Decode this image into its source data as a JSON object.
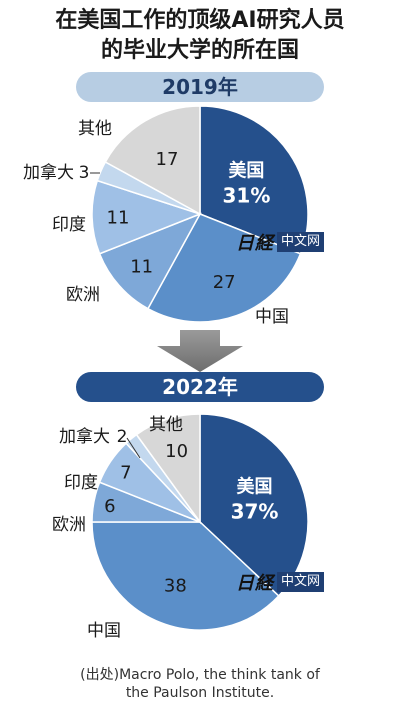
{
  "title_line1": "在美国工作的顶级AI研究人员",
  "title_line2": "的毕业大学的所在国",
  "source_line1": "(出处)Macro Polo, the think tank of",
  "source_line2": "the Paulson Institute.",
  "watermark_logo": "日経",
  "watermark_label": "中文网",
  "colors": {
    "us": "#25508c",
    "china": "#5b8fc9",
    "europe": "#7ea8d8",
    "india": "#9fc0e6",
    "canada": "#c3d8ee",
    "other": "#d7d7d7"
  },
  "chart_data": [
    {
      "type": "pie",
      "year_label": "2019年",
      "slices": [
        {
          "name": "美国",
          "value": 31,
          "value_label": "31%"
        },
        {
          "name": "中国",
          "value": 27,
          "value_label": "27"
        },
        {
          "name": "欧洲",
          "value": 11,
          "value_label": "11"
        },
        {
          "name": "印度",
          "value": 11,
          "value_label": "11"
        },
        {
          "name": "加拿大",
          "value": 3,
          "value_label": "3"
        },
        {
          "name": "其他",
          "value": 17,
          "value_label": "17"
        }
      ]
    },
    {
      "type": "pie",
      "year_label": "2022年",
      "slices": [
        {
          "name": "美国",
          "value": 37,
          "value_label": "37%"
        },
        {
          "name": "中国",
          "value": 38,
          "value_label": "38"
        },
        {
          "name": "欧洲",
          "value": 6,
          "value_label": "6"
        },
        {
          "name": "印度",
          "value": 7,
          "value_label": "7"
        },
        {
          "name": "加拿大",
          "value": 2,
          "value_label": "2"
        },
        {
          "name": "其他",
          "value": 10,
          "value_label": "10"
        }
      ]
    }
  ]
}
